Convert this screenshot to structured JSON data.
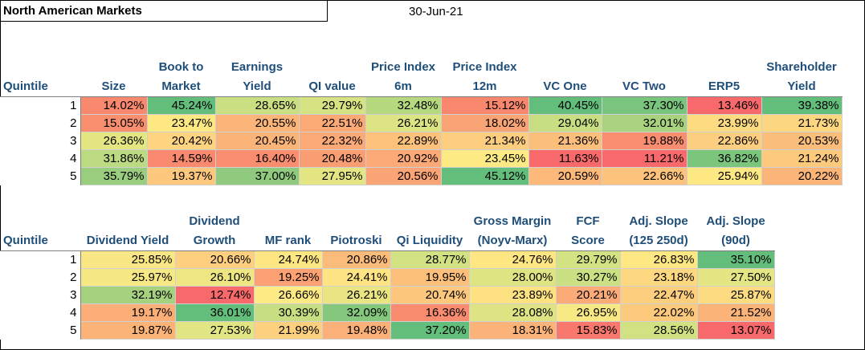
{
  "title": "North American Markets",
  "date": "30-Jun-21",
  "top_table": {
    "quintile_label": "Quintile",
    "columns": [
      {
        "line1": "",
        "line2": "Size"
      },
      {
        "line1": "Book to",
        "line2": "Market"
      },
      {
        "line1": "Earnings",
        "line2": "Yield"
      },
      {
        "line1": "",
        "line2": "QI value"
      },
      {
        "line1": "Price Index",
        "line2": "6m"
      },
      {
        "line1": "Price Index",
        "line2": "12m"
      },
      {
        "line1": "",
        "line2": "VC One"
      },
      {
        "line1": "",
        "line2": "VC Two"
      },
      {
        "line1": "",
        "line2": "ERP5"
      },
      {
        "line1": "Shareholder",
        "line2": "Yield"
      }
    ],
    "rows": [
      {
        "quintile": "1",
        "cells": [
          {
            "v": "14.02%",
            "c": "#f8896f"
          },
          {
            "v": "45.24%",
            "c": "#63be7b"
          },
          {
            "v": "28.65%",
            "c": "#c9df82"
          },
          {
            "v": "29.79%",
            "c": "#d6e382"
          },
          {
            "v": "32.48%",
            "c": "#b6d97f"
          },
          {
            "v": "15.12%",
            "c": "#f8876e"
          },
          {
            "v": "40.45%",
            "c": "#63be7b"
          },
          {
            "v": "37.30%",
            "c": "#7ac57d"
          },
          {
            "v": "13.46%",
            "c": "#f8696b"
          },
          {
            "v": "39.38%",
            "c": "#63be7b"
          }
        ]
      },
      {
        "quintile": "2",
        "cells": [
          {
            "v": "15.05%",
            "c": "#f8906f"
          },
          {
            "v": "23.47%",
            "c": "#fee883"
          },
          {
            "v": "20.55%",
            "c": "#fbb578"
          },
          {
            "v": "22.51%",
            "c": "#fbaa76"
          },
          {
            "v": "26.21%",
            "c": "#dde483"
          },
          {
            "v": "18.02%",
            "c": "#f9a474"
          },
          {
            "v": "29.04%",
            "c": "#c7de82"
          },
          {
            "v": "32.01%",
            "c": "#a9d27f"
          },
          {
            "v": "23.99%",
            "c": "#fddc81"
          },
          {
            "v": "21.73%",
            "c": "#fdd680"
          }
        ]
      },
      {
        "quintile": "3",
        "cells": [
          {
            "v": "26.36%",
            "c": "#e4e682"
          },
          {
            "v": "20.42%",
            "c": "#fed480"
          },
          {
            "v": "20.45%",
            "c": "#fbb478"
          },
          {
            "v": "22.32%",
            "c": "#fba976"
          },
          {
            "v": "22.89%",
            "c": "#fcc27b"
          },
          {
            "v": "21.34%",
            "c": "#fccd7e"
          },
          {
            "v": "21.36%",
            "c": "#fcbf7b"
          },
          {
            "v": "19.88%",
            "c": "#f98d6f"
          },
          {
            "v": "22.86%",
            "c": "#fcce7f"
          },
          {
            "v": "20.53%",
            "c": "#fbbd7a"
          }
        ]
      },
      {
        "quintile": "4",
        "cells": [
          {
            "v": "31.86%",
            "c": "#bcda81"
          },
          {
            "v": "14.59%",
            "c": "#f98a6f"
          },
          {
            "v": "16.40%",
            "c": "#f98d6f"
          },
          {
            "v": "20.48%",
            "c": "#f99d72"
          },
          {
            "v": "20.92%",
            "c": "#fba976"
          },
          {
            "v": "23.45%",
            "c": "#feea84"
          },
          {
            "v": "11.63%",
            "c": "#f8696b"
          },
          {
            "v": "11.21%",
            "c": "#f8696b"
          },
          {
            "v": "36.82%",
            "c": "#7cc57d"
          },
          {
            "v": "21.24%",
            "c": "#fcc97d"
          }
        ]
      },
      {
        "quintile": "5",
        "cells": [
          {
            "v": "35.79%",
            "c": "#9bcd7e"
          },
          {
            "v": "19.37%",
            "c": "#fdc87d"
          },
          {
            "v": "37.00%",
            "c": "#8fca7e"
          },
          {
            "v": "27.95%",
            "c": "#e4e683"
          },
          {
            "v": "20.56%",
            "c": "#fba475"
          },
          {
            "v": "45.12%",
            "c": "#63be7b"
          },
          {
            "v": "20.59%",
            "c": "#fcb97a"
          },
          {
            "v": "22.66%",
            "c": "#fdc27b"
          },
          {
            "v": "25.94%",
            "c": "#fee883"
          },
          {
            "v": "20.22%",
            "c": "#fbb579"
          }
        ]
      }
    ]
  },
  "bottom_table": {
    "quintile_label": "Quintile",
    "columns": [
      {
        "line1": "",
        "line2": "Dividend Yield"
      },
      {
        "line1": "Dividend",
        "line2": "Growth"
      },
      {
        "line1": "",
        "line2": "MF rank"
      },
      {
        "line1": "",
        "line2": "Piotroski"
      },
      {
        "line1": "",
        "line2": "Qi Liquidity"
      },
      {
        "line1": "Gross Margin",
        "line2": "(Noyv-Marx)"
      },
      {
        "line1": "FCF",
        "line2": "Score"
      },
      {
        "line1": "Adj. Slope",
        "line2": "(125 250d)"
      },
      {
        "line1": "Adj. Slope",
        "line2": "(90d)"
      }
    ],
    "rows": [
      {
        "quintile": "1",
        "cells": [
          {
            "v": "25.85%",
            "c": "#f8e784"
          },
          {
            "v": "20.66%",
            "c": "#fecf7f"
          },
          {
            "v": "24.74%",
            "c": "#fee683"
          },
          {
            "v": "20.86%",
            "c": "#fbbb7a"
          },
          {
            "v": "28.77%",
            "c": "#d2e282"
          },
          {
            "v": "24.76%",
            "c": "#fee683"
          },
          {
            "v": "29.79%",
            "c": "#d3e282"
          },
          {
            "v": "26.83%",
            "c": "#fee884"
          },
          {
            "v": "35.10%",
            "c": "#63be7b"
          }
        ]
      },
      {
        "quintile": "2",
        "cells": [
          {
            "v": "25.97%",
            "c": "#f6e884"
          },
          {
            "v": "26.10%",
            "c": "#eee683"
          },
          {
            "v": "19.25%",
            "c": "#fba173"
          },
          {
            "v": "24.41%",
            "c": "#fee482"
          },
          {
            "v": "19.95%",
            "c": "#fcc07b"
          },
          {
            "v": "28.00%",
            "c": "#dfe483"
          },
          {
            "v": "30.27%",
            "c": "#cbe082"
          },
          {
            "v": "23.18%",
            "c": "#fdd881"
          },
          {
            "v": "27.50%",
            "c": "#e4e683"
          }
        ]
      },
      {
        "quintile": "3",
        "cells": [
          {
            "v": "32.19%",
            "c": "#a6d17f"
          },
          {
            "v": "12.74%",
            "c": "#f8696b"
          },
          {
            "v": "26.66%",
            "c": "#feea84"
          },
          {
            "v": "26.21%",
            "c": "#eae583"
          },
          {
            "v": "20.74%",
            "c": "#fdc87d"
          },
          {
            "v": "23.89%",
            "c": "#fee282"
          },
          {
            "v": "20.21%",
            "c": "#fbab77"
          },
          {
            "v": "22.47%",
            "c": "#fcce7e"
          },
          {
            "v": "25.87%",
            "c": "#fddc81"
          }
        ]
      },
      {
        "quintile": "4",
        "cells": [
          {
            "v": "19.17%",
            "c": "#fbae77"
          },
          {
            "v": "36.01%",
            "c": "#63be7b"
          },
          {
            "v": "30.39%",
            "c": "#c7de82"
          },
          {
            "v": "32.09%",
            "c": "#85c87d"
          },
          {
            "v": "16.36%",
            "c": "#f98c6f"
          },
          {
            "v": "28.08%",
            "c": "#dee483"
          },
          {
            "v": "26.95%",
            "c": "#f8e984"
          },
          {
            "v": "22.02%",
            "c": "#fcc97d"
          },
          {
            "v": "21.52%",
            "c": "#fbb378"
          }
        ]
      },
      {
        "quintile": "5",
        "cells": [
          {
            "v": "19.87%",
            "c": "#fbb378"
          },
          {
            "v": "27.53%",
            "c": "#e1e583"
          },
          {
            "v": "21.99%",
            "c": "#fdd07f"
          },
          {
            "v": "19.48%",
            "c": "#fcb079"
          },
          {
            "v": "37.20%",
            "c": "#63be7b"
          },
          {
            "v": "18.31%",
            "c": "#fcb37a"
          },
          {
            "v": "15.83%",
            "c": "#f8786d"
          },
          {
            "v": "28.56%",
            "c": "#d2e282"
          },
          {
            "v": "13.07%",
            "c": "#f8696b"
          }
        ]
      }
    ]
  }
}
